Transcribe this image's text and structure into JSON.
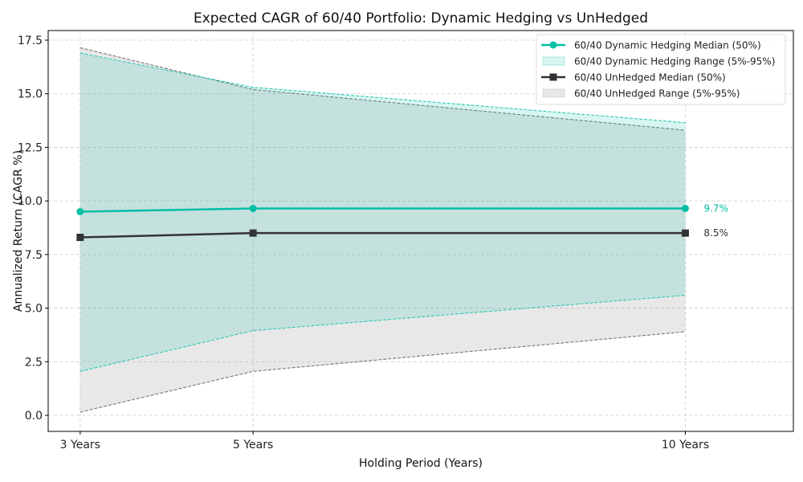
{
  "chart_data": {
    "type": "line",
    "title": "Expected CAGR of 60/40 Portfolio: Dynamic Hedging vs UnHedged",
    "xlabel": "Holding Period (Years)",
    "ylabel": "Annualized Return (CAGR %)",
    "x": [
      3,
      5,
      10
    ],
    "x_tick_labels": [
      "3 Years",
      "5 Years",
      "10 Years"
    ],
    "xlim": [
      2.63,
      11.25
    ],
    "ylim": [
      -0.75,
      17.95
    ],
    "y_ticks": [
      0.0,
      2.5,
      5.0,
      7.5,
      10.0,
      12.5,
      15.0,
      17.5
    ],
    "y_tick_labels": [
      "0.0",
      "2.5",
      "5.0",
      "7.5",
      "10.0",
      "12.5",
      "15.0",
      "17.5"
    ],
    "grid": true,
    "legend_position": "top-right",
    "series": [
      {
        "name": "60/40 Dynamic Hedging Median (50%)",
        "kind": "line",
        "marker": "circle",
        "color": "#00bfa5",
        "values": [
          9.5,
          9.65,
          9.65
        ]
      },
      {
        "name": "60/40 Dynamic Hedging Range (5%-95%)",
        "kind": "band",
        "color": "#00bfa5",
        "lower": [
          2.05,
          3.95,
          5.6
        ],
        "upper": [
          16.9,
          15.3,
          13.65
        ]
      },
      {
        "name": "60/40 UnHedged Median (50%)",
        "kind": "line",
        "marker": "square",
        "color": "#333333",
        "values": [
          8.3,
          8.5,
          8.5
        ]
      },
      {
        "name": "60/40 UnHedged Range (5%-95%)",
        "kind": "band",
        "color": "#888888",
        "lower": [
          0.15,
          2.05,
          3.9
        ],
        "upper": [
          17.15,
          15.2,
          13.3
        ]
      }
    ],
    "annotations": [
      {
        "text": "9.7%",
        "series": 0,
        "color": "#00bfa5"
      },
      {
        "text": "8.5%",
        "series": 2,
        "color": "#333333"
      }
    ]
  }
}
